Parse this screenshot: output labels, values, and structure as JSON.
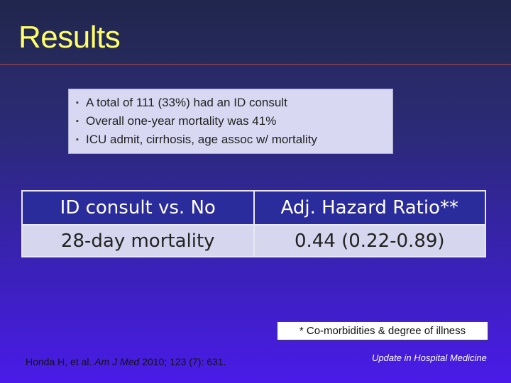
{
  "slide": {
    "title": "Results",
    "bullets": [
      "A total of 111 (33%) had an ID consult",
      "Overall one-year mortality was 41%",
      "ICU admit, cirrhosis, age assoc w/ mortality"
    ],
    "bullet_marker": "▪",
    "table": {
      "header": [
        "ID consult vs. No",
        "Adj. Hazard Ratio**"
      ],
      "row": [
        "28-day mortality",
        "0.44 (0.22-0.89)"
      ]
    },
    "footnote": "* Co-morbidities & degree of illness",
    "citation": {
      "authors": "Honda H, et al.",
      "journal": "Am J Med",
      "details": "2010; 123 (7): 631."
    },
    "conference": "Update in Hospital Medicine"
  },
  "colors": {
    "title": "#ffff66",
    "background_top": "#252a55",
    "background_bottom": "#4a1be8",
    "table_header": "#2a2c9c",
    "table_row": "#d6d6ee"
  }
}
